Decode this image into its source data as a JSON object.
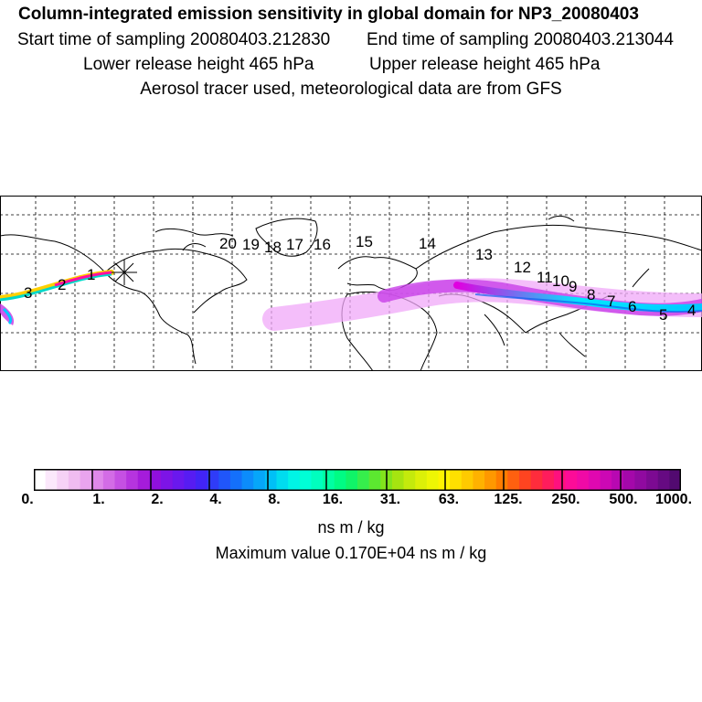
{
  "header": {
    "title": "Column-integrated emission sensitivity in global domain for NP3_20080403",
    "start_time": "Start time of sampling 20080403.212830",
    "end_time": "End time of sampling 20080403.213044",
    "lower_height": "Lower release height  465 hPa",
    "upper_height": "Upper release height  465 hPa",
    "tracer_note": "Aerosol tracer used, meteorological data are from GFS"
  },
  "map": {
    "release_marker": "release-star-icon",
    "trajectory_labels": [
      "1",
      "2",
      "3",
      "4",
      "5",
      "6",
      "7",
      "8",
      "9",
      "10",
      "11",
      "12",
      "13",
      "14",
      "15",
      "16",
      "17",
      "18",
      "19",
      "20"
    ],
    "colors": {
      "coast": "#000000",
      "grid": "#000000"
    }
  },
  "colorbar": {
    "ticks": [
      "0.",
      "1.",
      "2.",
      "4.",
      "8.",
      "16.",
      "31.",
      "63.",
      "125.",
      "250.",
      "500.",
      "1000."
    ],
    "colors": [
      "#ffffff",
      "#fbe8fb",
      "#f6d2f6",
      "#f0bcf0",
      "#e9a4ee",
      "#df88ea",
      "#d36ce6",
      "#c550e3",
      "#b634df",
      "#a51cdb",
      "#9010dd",
      "#7d14e6",
      "#6a18ee",
      "#571cf2",
      "#4224f6",
      "#2f3cf8",
      "#2056fa",
      "#1470fb",
      "#0c8cfb",
      "#06a6f9",
      "#00c0f6",
      "#00dcef",
      "#00f4e6",
      "#00ffd6",
      "#00ffbe",
      "#00ffa2",
      "#00fc84",
      "#10f468",
      "#36ee4c",
      "#5ce830",
      "#82e41c",
      "#a6e410",
      "#c4ea0c",
      "#dcf008",
      "#eef604",
      "#fff400",
      "#ffe000",
      "#ffca00",
      "#ffb200",
      "#ff9800",
      "#ff7c00",
      "#ff6010",
      "#ff4420",
      "#ff2c3c",
      "#ff1c5c",
      "#ff107e",
      "#fc0c98",
      "#f00aa6",
      "#e008b0",
      "#cc08b4",
      "#b808b2",
      "#a408aa",
      "#900aa0",
      "#7c0a92",
      "#660a82",
      "#520a70"
    ],
    "units": "ns m / kg",
    "max_value": "Maximum value  0.170E+04 ns m / kg"
  }
}
